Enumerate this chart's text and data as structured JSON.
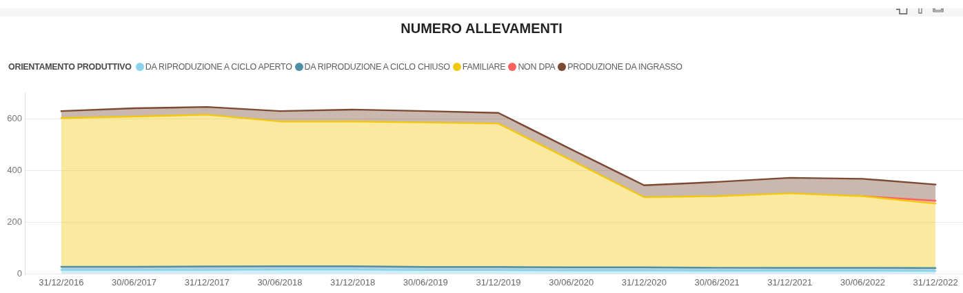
{
  "chart_data": {
    "type": "area",
    "title": "NUMERO ALLEVAMENTI",
    "legend_title": "ORIENTAMENTO PRODUTTIVO",
    "legend": "top left",
    "stacked": true,
    "grid": "y",
    "line_style": "solid",
    "categories": [
      "31/12/2016",
      "30/06/2017",
      "31/12/2017",
      "30/06/2018",
      "31/12/2018",
      "30/06/2019",
      "31/12/2019",
      "30/06/2020",
      "31/12/2020",
      "30/06/2021",
      "31/12/2021",
      "30/06/2022",
      "31/12/2022"
    ],
    "series": [
      {
        "name": "DA RIPRODUZIONE A CICLO APERTO",
        "color": "#8ad4eb",
        "values": [
          15,
          15,
          15,
          16,
          16,
          14,
          14,
          13,
          13,
          12,
          12,
          12,
          11
        ]
      },
      {
        "name": "DA RIPRODUZIONE A CICLO CHIUSO",
        "color": "#4f8fa6",
        "values": [
          12,
          12,
          13,
          13,
          13,
          12,
          12,
          12,
          12,
          11,
          11,
          11,
          11
        ]
      },
      {
        "name": "FAMILIARE",
        "color": "#f2c80f",
        "values": [
          575,
          581,
          587,
          560,
          560,
          559,
          555,
          414,
          271,
          277,
          288,
          277,
          249
        ]
      },
      {
        "name": "NON DPA",
        "color": "#fd625e",
        "values": [
          null,
          null,
          null,
          null,
          null,
          null,
          null,
          null,
          null,
          null,
          null,
          0,
          11
        ]
      },
      {
        "name": "PRODUZIONE DA INGRASSO",
        "color": "#7b4a33",
        "values": [
          27,
          32,
          30,
          40,
          46,
          44,
          41,
          42,
          46,
          55,
          60,
          67,
          63
        ]
      }
    ],
    "ylim": [
      0,
      700
    ],
    "yticks": [
      0,
      200,
      400,
      600
    ]
  }
}
